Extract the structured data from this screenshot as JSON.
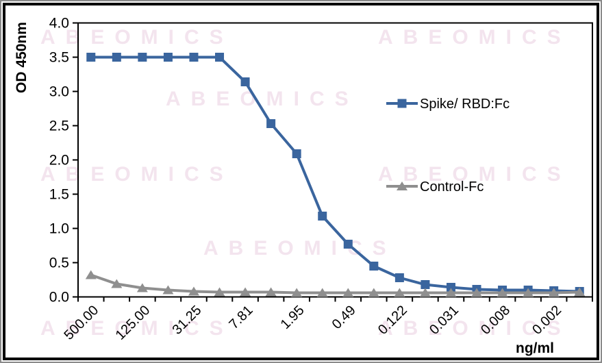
{
  "watermark": {
    "text": "ABEOMICS",
    "color": "#f3e4ee"
  },
  "chart_data": {
    "type": "line",
    "title": "",
    "xlabel": "ng/ml",
    "ylabel": "OD 450nm",
    "ylim": [
      0.0,
      4.0
    ],
    "ytick_step": 0.5,
    "ytick_labels": [
      "0.0",
      "0.5",
      "1.0",
      "1.5",
      "2.0",
      "2.5",
      "3.0",
      "3.5",
      "4.0"
    ],
    "grid": false,
    "legend_position": "inside-right",
    "n_points": 20,
    "x_label_interval": 2,
    "categories": [
      "500.00",
      "",
      "125.00",
      "",
      "31.25",
      "",
      "7.81",
      "",
      "1.95",
      "",
      "0.49",
      "",
      "0.122",
      "",
      "0.031",
      "",
      "0.008",
      "",
      "0.002",
      ""
    ],
    "series": [
      {
        "name": "Spike/ RBD:Fc",
        "color": "#3a659e",
        "marker": "square",
        "values": [
          3.5,
          3.5,
          3.5,
          3.5,
          3.5,
          3.5,
          3.14,
          2.53,
          2.09,
          1.18,
          0.77,
          0.45,
          0.28,
          0.18,
          0.14,
          0.11,
          0.1,
          0.1,
          0.09,
          0.08
        ]
      },
      {
        "name": "Control-Fc",
        "color": "#8f8f8f",
        "marker": "triangle",
        "values": [
          0.32,
          0.19,
          0.13,
          0.1,
          0.08,
          0.07,
          0.07,
          0.07,
          0.06,
          0.06,
          0.06,
          0.06,
          0.06,
          0.06,
          0.06,
          0.06,
          0.06,
          0.06,
          0.06,
          0.07
        ]
      }
    ]
  }
}
